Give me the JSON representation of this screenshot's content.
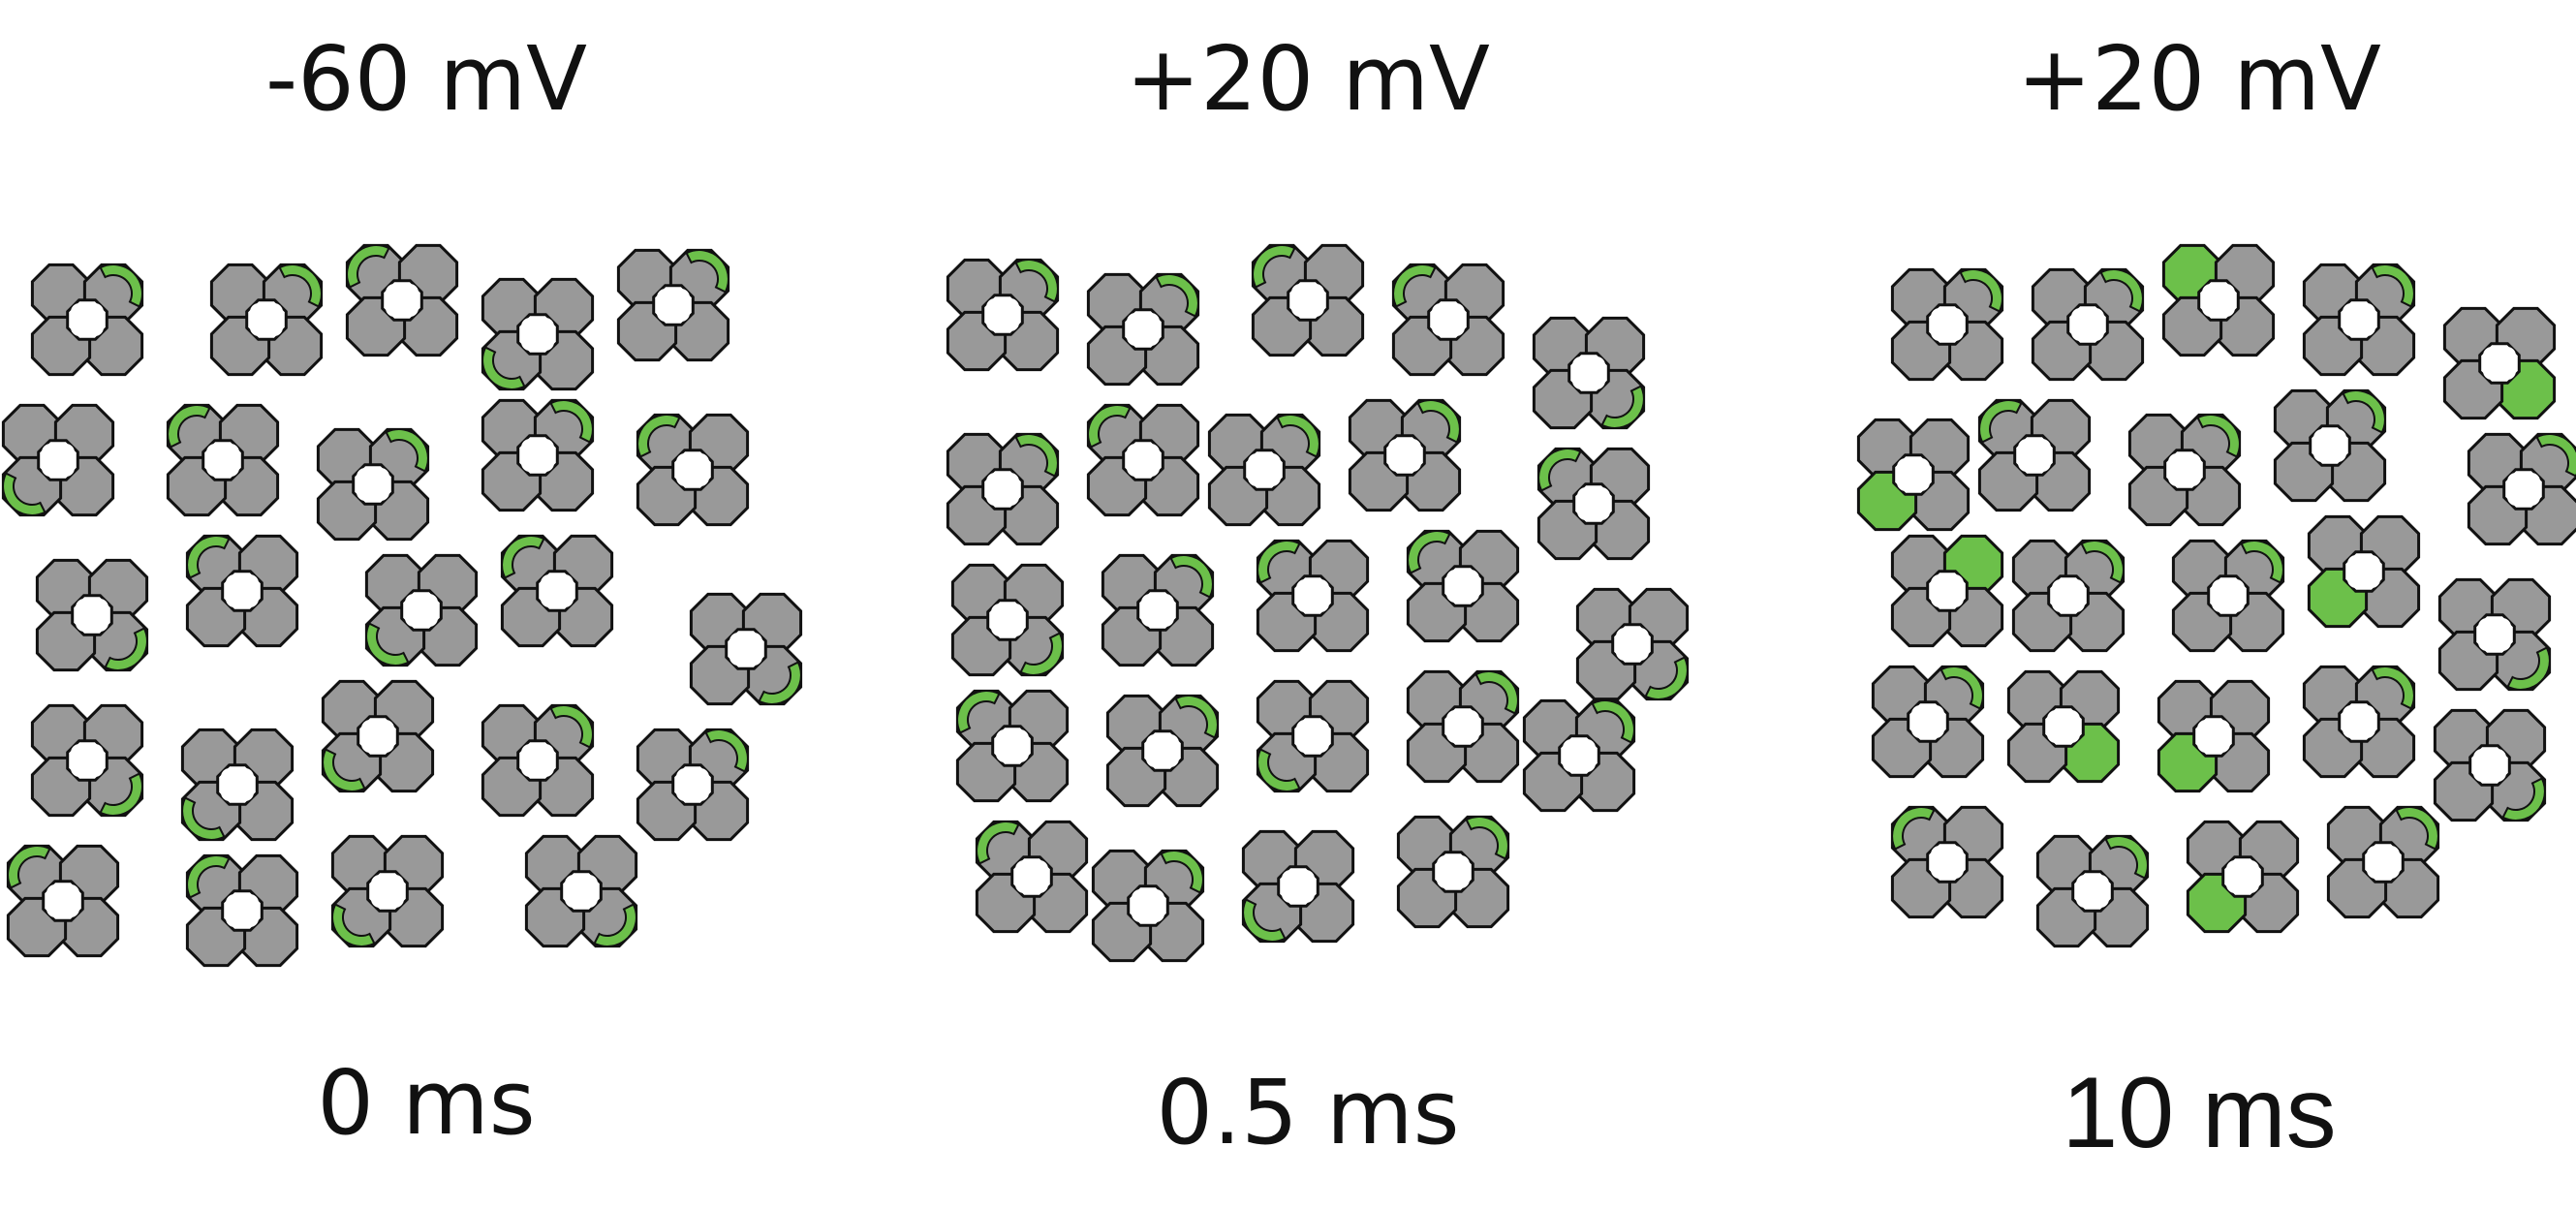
{
  "panels": [
    {
      "voltage": "-60 mV",
      "time": "0 ms",
      "state": "resting"
    },
    {
      "voltage": "+20 mV",
      "time": "0.5 ms",
      "state": "activated"
    },
    {
      "voltage": "+20 mV",
      "time": "10 ms",
      "state": "inactivated"
    }
  ],
  "colors": {
    "subunit": "#999999",
    "outline": "#111111",
    "gating": "#6cc04a",
    "pore": "#ffffff"
  }
}
